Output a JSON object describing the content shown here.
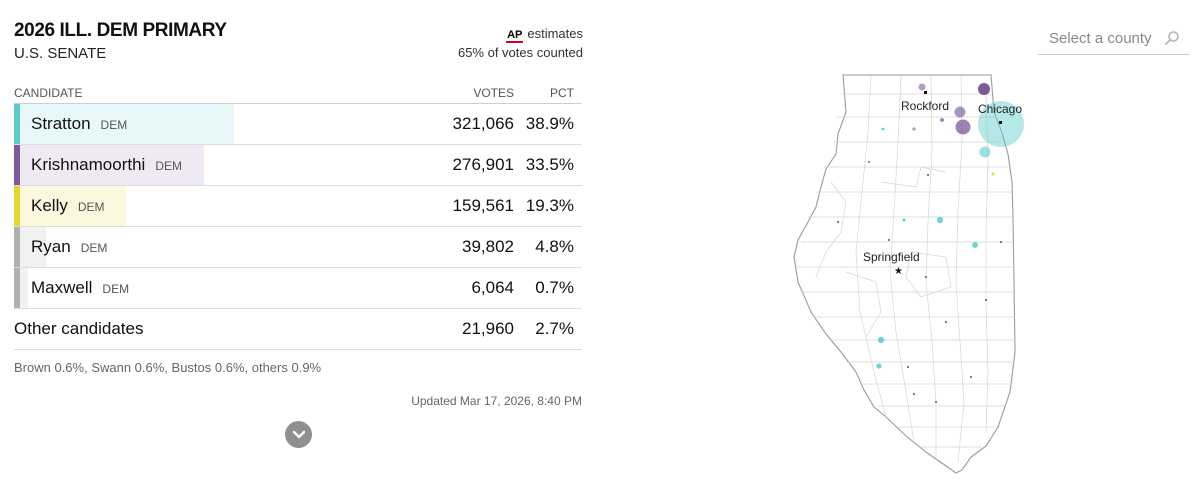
{
  "race": {
    "title": "2026 ILL. DEM PRIMARY",
    "subtitle": "U.S. SENATE",
    "ap_logo": "AP",
    "ap_estimates": "estimates",
    "counted": "65% of votes counted"
  },
  "table": {
    "headers": {
      "candidate": "CANDIDATE",
      "votes": "VOTES",
      "pct": "PCT"
    },
    "candidates": [
      {
        "name": "Stratton",
        "party": "DEM",
        "votes": "321,066",
        "pct": "38.9%",
        "share": 0.389,
        "color": "#5ecbcb",
        "bg": "#e8f7f8"
      },
      {
        "name": "Krishnamoorthi",
        "party": "DEM",
        "votes": "276,901",
        "pct": "33.5%",
        "share": 0.335,
        "color": "#7b5a97",
        "bg": "#efe9f3"
      },
      {
        "name": "Kelly",
        "party": "DEM",
        "votes": "159,561",
        "pct": "19.3%",
        "share": 0.193,
        "color": "#e6d634",
        "bg": "#fbf8de"
      },
      {
        "name": "Ryan",
        "party": "DEM",
        "votes": "39,802",
        "pct": "4.8%",
        "share": 0.048,
        "color": "#b0b0b0",
        "bg": "#f1f1f1"
      },
      {
        "name": "Maxwell",
        "party": "DEM",
        "votes": "6,064",
        "pct": "0.7%",
        "share": 0.007,
        "color": "#b0b0b0",
        "bg": "#f1f1f1"
      }
    ],
    "other": {
      "name": "Other candidates",
      "votes": "21,960",
      "pct": "2.7%"
    }
  },
  "footnote": "Brown 0.6%, Swann 0.6%, Bustos 0.6%, others 0.9%",
  "updated": "Updated Mar 17, 2026, 8:40 PM",
  "more_icon": "chevron-down-icon",
  "county_search": {
    "placeholder": "Select a county",
    "icon": "search-icon"
  },
  "map": {
    "cities": {
      "rockford": "Rockford",
      "chicago": "Chicago",
      "springfield": "Springfield"
    }
  }
}
